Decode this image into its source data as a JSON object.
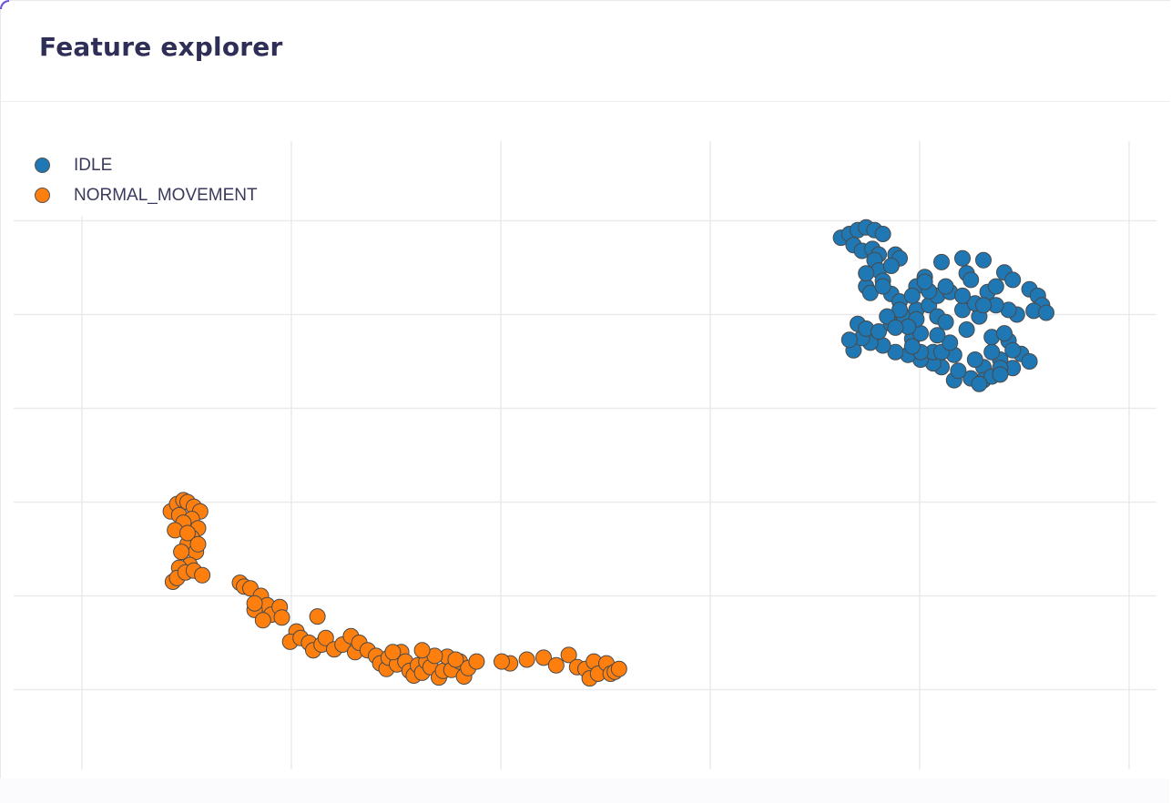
{
  "panel": {
    "title": "Feature explorer"
  },
  "chart_data": {
    "type": "scatter",
    "title": "Feature explorer",
    "xlabel": "",
    "ylabel": "",
    "xlim": [
      -0.1,
      5.1
    ],
    "ylim": [
      -0.85,
      5.85
    ],
    "grid": true,
    "legend": "top-left",
    "legend_position": "top-left",
    "series": [
      {
        "name": "IDLE",
        "color": "#1f77b4",
        "points": [
          [
            3.62,
            4.82
          ],
          [
            3.66,
            4.86
          ],
          [
            3.7,
            4.9
          ],
          [
            3.74,
            4.93
          ],
          [
            3.78,
            4.9
          ],
          [
            3.82,
            4.86
          ],
          [
            3.68,
            4.74
          ],
          [
            3.72,
            4.68
          ],
          [
            3.77,
            4.7
          ],
          [
            3.8,
            4.64
          ],
          [
            3.88,
            4.64
          ],
          [
            3.78,
            4.58
          ],
          [
            3.8,
            4.47
          ],
          [
            3.74,
            4.3
          ],
          [
            3.82,
            4.36
          ],
          [
            3.76,
            4.23
          ],
          [
            3.86,
            4.22
          ],
          [
            3.9,
            4.14
          ],
          [
            3.98,
            4.3
          ],
          [
            4.02,
            4.4
          ],
          [
            4.1,
            4.56
          ],
          [
            4.2,
            4.6
          ],
          [
            4.22,
            4.44
          ],
          [
            4.3,
            4.58
          ],
          [
            4.24,
            4.37
          ],
          [
            4.32,
            4.24
          ],
          [
            4.36,
            4.3
          ],
          [
            4.4,
            4.45
          ],
          [
            4.44,
            4.37
          ],
          [
            4.52,
            4.27
          ],
          [
            4.56,
            4.2
          ],
          [
            4.58,
            4.1
          ],
          [
            4.54,
            4.04
          ],
          [
            4.6,
            4.02
          ],
          [
            4.46,
            4.0
          ],
          [
            4.42,
            4.05
          ],
          [
            4.36,
            4.1
          ],
          [
            4.28,
            3.98
          ],
          [
            4.22,
            3.84
          ],
          [
            4.34,
            3.76
          ],
          [
            4.42,
            3.72
          ],
          [
            4.48,
            3.58
          ],
          [
            4.52,
            3.5
          ],
          [
            4.44,
            3.43
          ],
          [
            4.38,
            3.52
          ],
          [
            4.3,
            3.44
          ],
          [
            4.26,
            3.52
          ],
          [
            4.16,
            3.57
          ],
          [
            4.1,
            3.44
          ],
          [
            4.06,
            3.48
          ],
          [
            4.0,
            3.52
          ],
          [
            3.94,
            3.57
          ],
          [
            3.88,
            3.6
          ],
          [
            3.82,
            3.67
          ],
          [
            3.76,
            3.7
          ],
          [
            3.68,
            3.62
          ],
          [
            3.72,
            3.75
          ],
          [
            3.66,
            3.73
          ],
          [
            3.7,
            3.9
          ],
          [
            3.74,
            3.85
          ],
          [
            3.8,
            3.82
          ],
          [
            3.86,
            3.9
          ],
          [
            3.92,
            3.98
          ],
          [
            3.98,
            4.05
          ],
          [
            4.04,
            4.1
          ],
          [
            4.08,
            4.2
          ],
          [
            4.14,
            4.24
          ],
          [
            4.04,
            4.25
          ],
          [
            3.96,
            4.2
          ],
          [
            3.9,
            4.05
          ],
          [
            3.84,
            3.98
          ],
          [
            3.96,
            3.74
          ],
          [
            4.08,
            3.98
          ],
          [
            4.0,
            3.8
          ],
          [
            4.12,
            3.92
          ],
          [
            4.2,
            4.05
          ],
          [
            4.26,
            4.12
          ],
          [
            4.16,
            3.3
          ],
          [
            4.24,
            3.32
          ],
          [
            4.3,
            3.3
          ],
          [
            4.34,
            3.34
          ],
          [
            4.38,
            3.43
          ],
          [
            4.44,
            3.62
          ],
          [
            4.34,
            3.6
          ],
          [
            4.4,
            3.8
          ],
          [
            4.3,
            4.1
          ],
          [
            4.2,
            4.2
          ],
          [
            4.12,
            4.3
          ],
          [
            4.02,
            4.35
          ],
          [
            3.9,
            4.6
          ],
          [
            3.86,
            4.52
          ],
          [
            3.82,
            4.3
          ],
          [
            3.74,
            4.44
          ],
          [
            3.98,
            3.95
          ],
          [
            4.06,
            3.6
          ],
          [
            4.1,
            3.6
          ],
          [
            4.0,
            3.6
          ],
          [
            4.14,
            3.7
          ],
          [
            3.94,
            3.87
          ],
          [
            4.08,
            3.78
          ],
          [
            3.96,
            3.66
          ],
          [
            3.88,
            3.86
          ],
          [
            4.18,
            3.4
          ],
          [
            4.28,
            3.26
          ],
          [
            4.38,
            3.36
          ]
        ]
      },
      {
        "name": "NORMAL_MOVEMENT",
        "color": "#ff7f0e",
        "points": [
          [
            0.42,
            1.9
          ],
          [
            0.45,
            1.98
          ],
          [
            0.48,
            2.02
          ],
          [
            0.5,
            2.0
          ],
          [
            0.53,
            1.95
          ],
          [
            0.56,
            1.9
          ],
          [
            0.46,
            1.86
          ],
          [
            0.52,
            1.82
          ],
          [
            0.55,
            1.72
          ],
          [
            0.48,
            1.78
          ],
          [
            0.44,
            1.7
          ],
          [
            0.52,
            1.62
          ],
          [
            0.5,
            1.55
          ],
          [
            0.54,
            1.47
          ],
          [
            0.47,
            1.47
          ],
          [
            0.51,
            1.33
          ],
          [
            0.46,
            1.3
          ],
          [
            0.43,
            1.15
          ],
          [
            0.45,
            1.19
          ],
          [
            0.49,
            1.25
          ],
          [
            0.53,
            1.27
          ],
          [
            0.57,
            1.22
          ],
          [
            0.5,
            1.67
          ],
          [
            0.55,
            1.55
          ],
          [
            0.75,
            1.14
          ],
          [
            0.77,
            1.1
          ],
          [
            0.8,
            1.08
          ],
          [
            0.85,
            1.0
          ],
          [
            0.88,
            0.9
          ],
          [
            0.82,
            0.85
          ],
          [
            0.9,
            0.8
          ],
          [
            0.94,
            0.88
          ],
          [
            0.95,
            0.77
          ],
          [
            0.82,
            0.92
          ],
          [
            0.86,
            0.74
          ],
          [
            1.02,
            0.62
          ],
          [
            0.99,
            0.51
          ],
          [
            1.04,
            0.55
          ],
          [
            1.08,
            0.5
          ],
          [
            1.1,
            0.42
          ],
          [
            1.12,
            0.78
          ],
          [
            1.14,
            0.48
          ],
          [
            1.16,
            0.55
          ],
          [
            1.2,
            0.43
          ],
          [
            1.24,
            0.48
          ],
          [
            1.28,
            0.57
          ],
          [
            1.3,
            0.4
          ],
          [
            1.32,
            0.5
          ],
          [
            1.36,
            0.42
          ],
          [
            1.4,
            0.36
          ],
          [
            1.42,
            0.28
          ],
          [
            1.45,
            0.22
          ],
          [
            1.46,
            0.34
          ],
          [
            1.5,
            0.27
          ],
          [
            1.52,
            0.4
          ],
          [
            1.54,
            0.3
          ],
          [
            1.56,
            0.2
          ],
          [
            1.58,
            0.15
          ],
          [
            1.6,
            0.26
          ],
          [
            1.62,
            0.18
          ],
          [
            1.64,
            0.3
          ],
          [
            1.66,
            0.24
          ],
          [
            1.7,
            0.13
          ],
          [
            1.72,
            0.2
          ],
          [
            1.74,
            0.35
          ],
          [
            1.76,
            0.21
          ],
          [
            1.8,
            0.3
          ],
          [
            1.82,
            0.14
          ],
          [
            1.84,
            0.23
          ],
          [
            2.04,
            0.28
          ],
          [
            2.12,
            0.32
          ],
          [
            2.2,
            0.34
          ],
          [
            2.26,
            0.26
          ],
          [
            2.32,
            0.37
          ],
          [
            2.36,
            0.24
          ],
          [
            2.4,
            0.22
          ],
          [
            2.42,
            0.12
          ],
          [
            2.44,
            0.3
          ],
          [
            2.46,
            0.17
          ],
          [
            2.5,
            0.28
          ],
          [
            2.52,
            0.17
          ],
          [
            2.54,
            0.19
          ],
          [
            2.56,
            0.22
          ],
          [
            2.0,
            0.3
          ],
          [
            1.88,
            0.3
          ],
          [
            1.78,
            0.32
          ],
          [
            1.68,
            0.36
          ],
          [
            1.62,
            0.42
          ],
          [
            1.48,
            0.4
          ]
        ]
      }
    ]
  }
}
